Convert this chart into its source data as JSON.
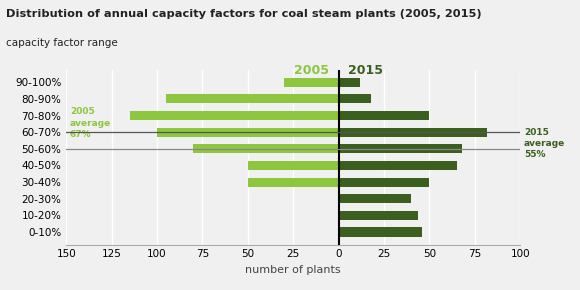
{
  "title": "Distribution of annual capacity factors for coal steam plants (2005, 2015)",
  "subtitle": "capacity factor range",
  "xlabel": "number of plants",
  "categories": [
    "90-100%",
    "80-90%",
    "70-80%",
    "60-70%",
    "50-60%",
    "40-50%",
    "30-40%",
    "20-30%",
    "10-20%",
    "0-10%"
  ],
  "values_2005": [
    30,
    95,
    115,
    100,
    80,
    50,
    50,
    0,
    0,
    0
  ],
  "values_2015": [
    12,
    18,
    50,
    82,
    68,
    65,
    50,
    40,
    44,
    46
  ],
  "color_2005": "#8dc63f",
  "color_2015": "#3a5f1e",
  "avg_line_color_2005": "#555555",
  "avg_line_color_2015": "#888888",
  "bg_color": "#f0f0f0",
  "title_color": "#222222",
  "label_2005_color": "#8dc63f",
  "label_2015_color": "#3a5f1e",
  "xlim_left": 150,
  "xlim_right": 100,
  "figsize": [
    5.8,
    2.9
  ],
  "dpi": 100
}
